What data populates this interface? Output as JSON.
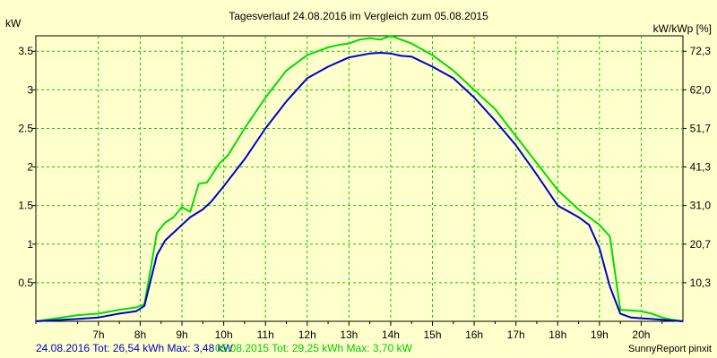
{
  "chart_data": {
    "type": "line",
    "title": "Tagesverlauf 24.08.2016 im Vergleich zum 05.08.2015",
    "ylabel_left": "kW",
    "ylabel_right": "kW/kWp [%]",
    "xlim": [
      5.5,
      21.0
    ],
    "ylim": [
      0,
      3.7
    ],
    "x_ticks": [
      "7h",
      "8h",
      "9h",
      "10h",
      "11h",
      "12h",
      "13h",
      "14h",
      "15h",
      "16h",
      "17h",
      "18h",
      "19h",
      "20h"
    ],
    "x_tick_values": [
      7,
      8,
      9,
      10,
      11,
      12,
      13,
      14,
      15,
      16,
      17,
      18,
      19,
      20
    ],
    "y_ticks_left": [
      "0.5",
      "1",
      "1.5",
      "2",
      "2.5",
      "3",
      "3.5"
    ],
    "y_tick_values_left": [
      0.5,
      1,
      1.5,
      2,
      2.5,
      3,
      3.5
    ],
    "y_ticks_right": [
      "10,3",
      "20,7",
      "31,0",
      "41,3",
      "51,7",
      "62,0",
      "72,3"
    ],
    "y_tick_values_right": [
      0.5,
      1,
      1.5,
      2,
      2.5,
      3,
      3.5
    ],
    "grid": true,
    "series": [
      {
        "name": "24.08.2016",
        "color": "#0000cc",
        "x": [
          5.5,
          6.5,
          7.0,
          7.5,
          7.9,
          8.1,
          8.4,
          8.6,
          8.8,
          9.0,
          9.2,
          9.5,
          9.7,
          10.0,
          10.5,
          11.0,
          11.5,
          12.0,
          12.5,
          13.0,
          13.5,
          13.75,
          14.0,
          14.25,
          14.5,
          15.0,
          15.5,
          16.0,
          16.5,
          17.0,
          17.5,
          18.0,
          18.5,
          18.75,
          19.0,
          19.25,
          19.5,
          19.75,
          20.0,
          20.25,
          20.5,
          20.75,
          21.0
        ],
        "y": [
          0.0,
          0.03,
          0.05,
          0.1,
          0.13,
          0.2,
          0.86,
          1.05,
          1.15,
          1.25,
          1.35,
          1.45,
          1.55,
          1.75,
          2.1,
          2.5,
          2.85,
          3.15,
          3.3,
          3.42,
          3.47,
          3.48,
          3.47,
          3.44,
          3.43,
          3.3,
          3.15,
          2.9,
          2.6,
          2.28,
          1.9,
          1.5,
          1.35,
          1.25,
          0.95,
          0.45,
          0.1,
          0.05,
          0.04,
          0.03,
          0.02,
          0.01,
          0.0
        ]
      },
      {
        "name": "05.08.2015",
        "color": "#00dd00",
        "x": [
          5.5,
          6.5,
          7.0,
          7.5,
          7.9,
          8.1,
          8.4,
          8.6,
          8.8,
          9.0,
          9.2,
          9.4,
          9.6,
          9.9,
          10.1,
          10.5,
          11.0,
          11.5,
          12.0,
          12.5,
          12.75,
          13.0,
          13.25,
          13.5,
          13.75,
          14.0,
          14.25,
          14.5,
          15.0,
          15.5,
          16.0,
          16.5,
          17.0,
          17.5,
          18.0,
          18.5,
          18.75,
          19.0,
          19.25,
          19.5,
          19.75,
          20.0,
          20.25,
          20.5,
          20.75,
          21.0
        ],
        "y": [
          0.0,
          0.08,
          0.1,
          0.15,
          0.18,
          0.22,
          1.15,
          1.28,
          1.35,
          1.48,
          1.42,
          1.78,
          1.8,
          2.05,
          2.15,
          2.5,
          2.9,
          3.25,
          3.45,
          3.55,
          3.58,
          3.6,
          3.65,
          3.67,
          3.65,
          3.7,
          3.65,
          3.6,
          3.45,
          3.25,
          3.0,
          2.75,
          2.4,
          2.05,
          1.7,
          1.45,
          1.35,
          1.25,
          1.1,
          0.15,
          0.14,
          0.13,
          0.1,
          0.05,
          0.02,
          0.0
        ]
      }
    ]
  },
  "footer": {
    "series1_text": "24.08.2016 Tot: 26,54 kWh Max: 3,48 kW",
    "series2_text": "05.08.2015 Tot: 29,25 kWh Max: 3,70 kW",
    "source_text": "SunnyReport pinxit"
  }
}
